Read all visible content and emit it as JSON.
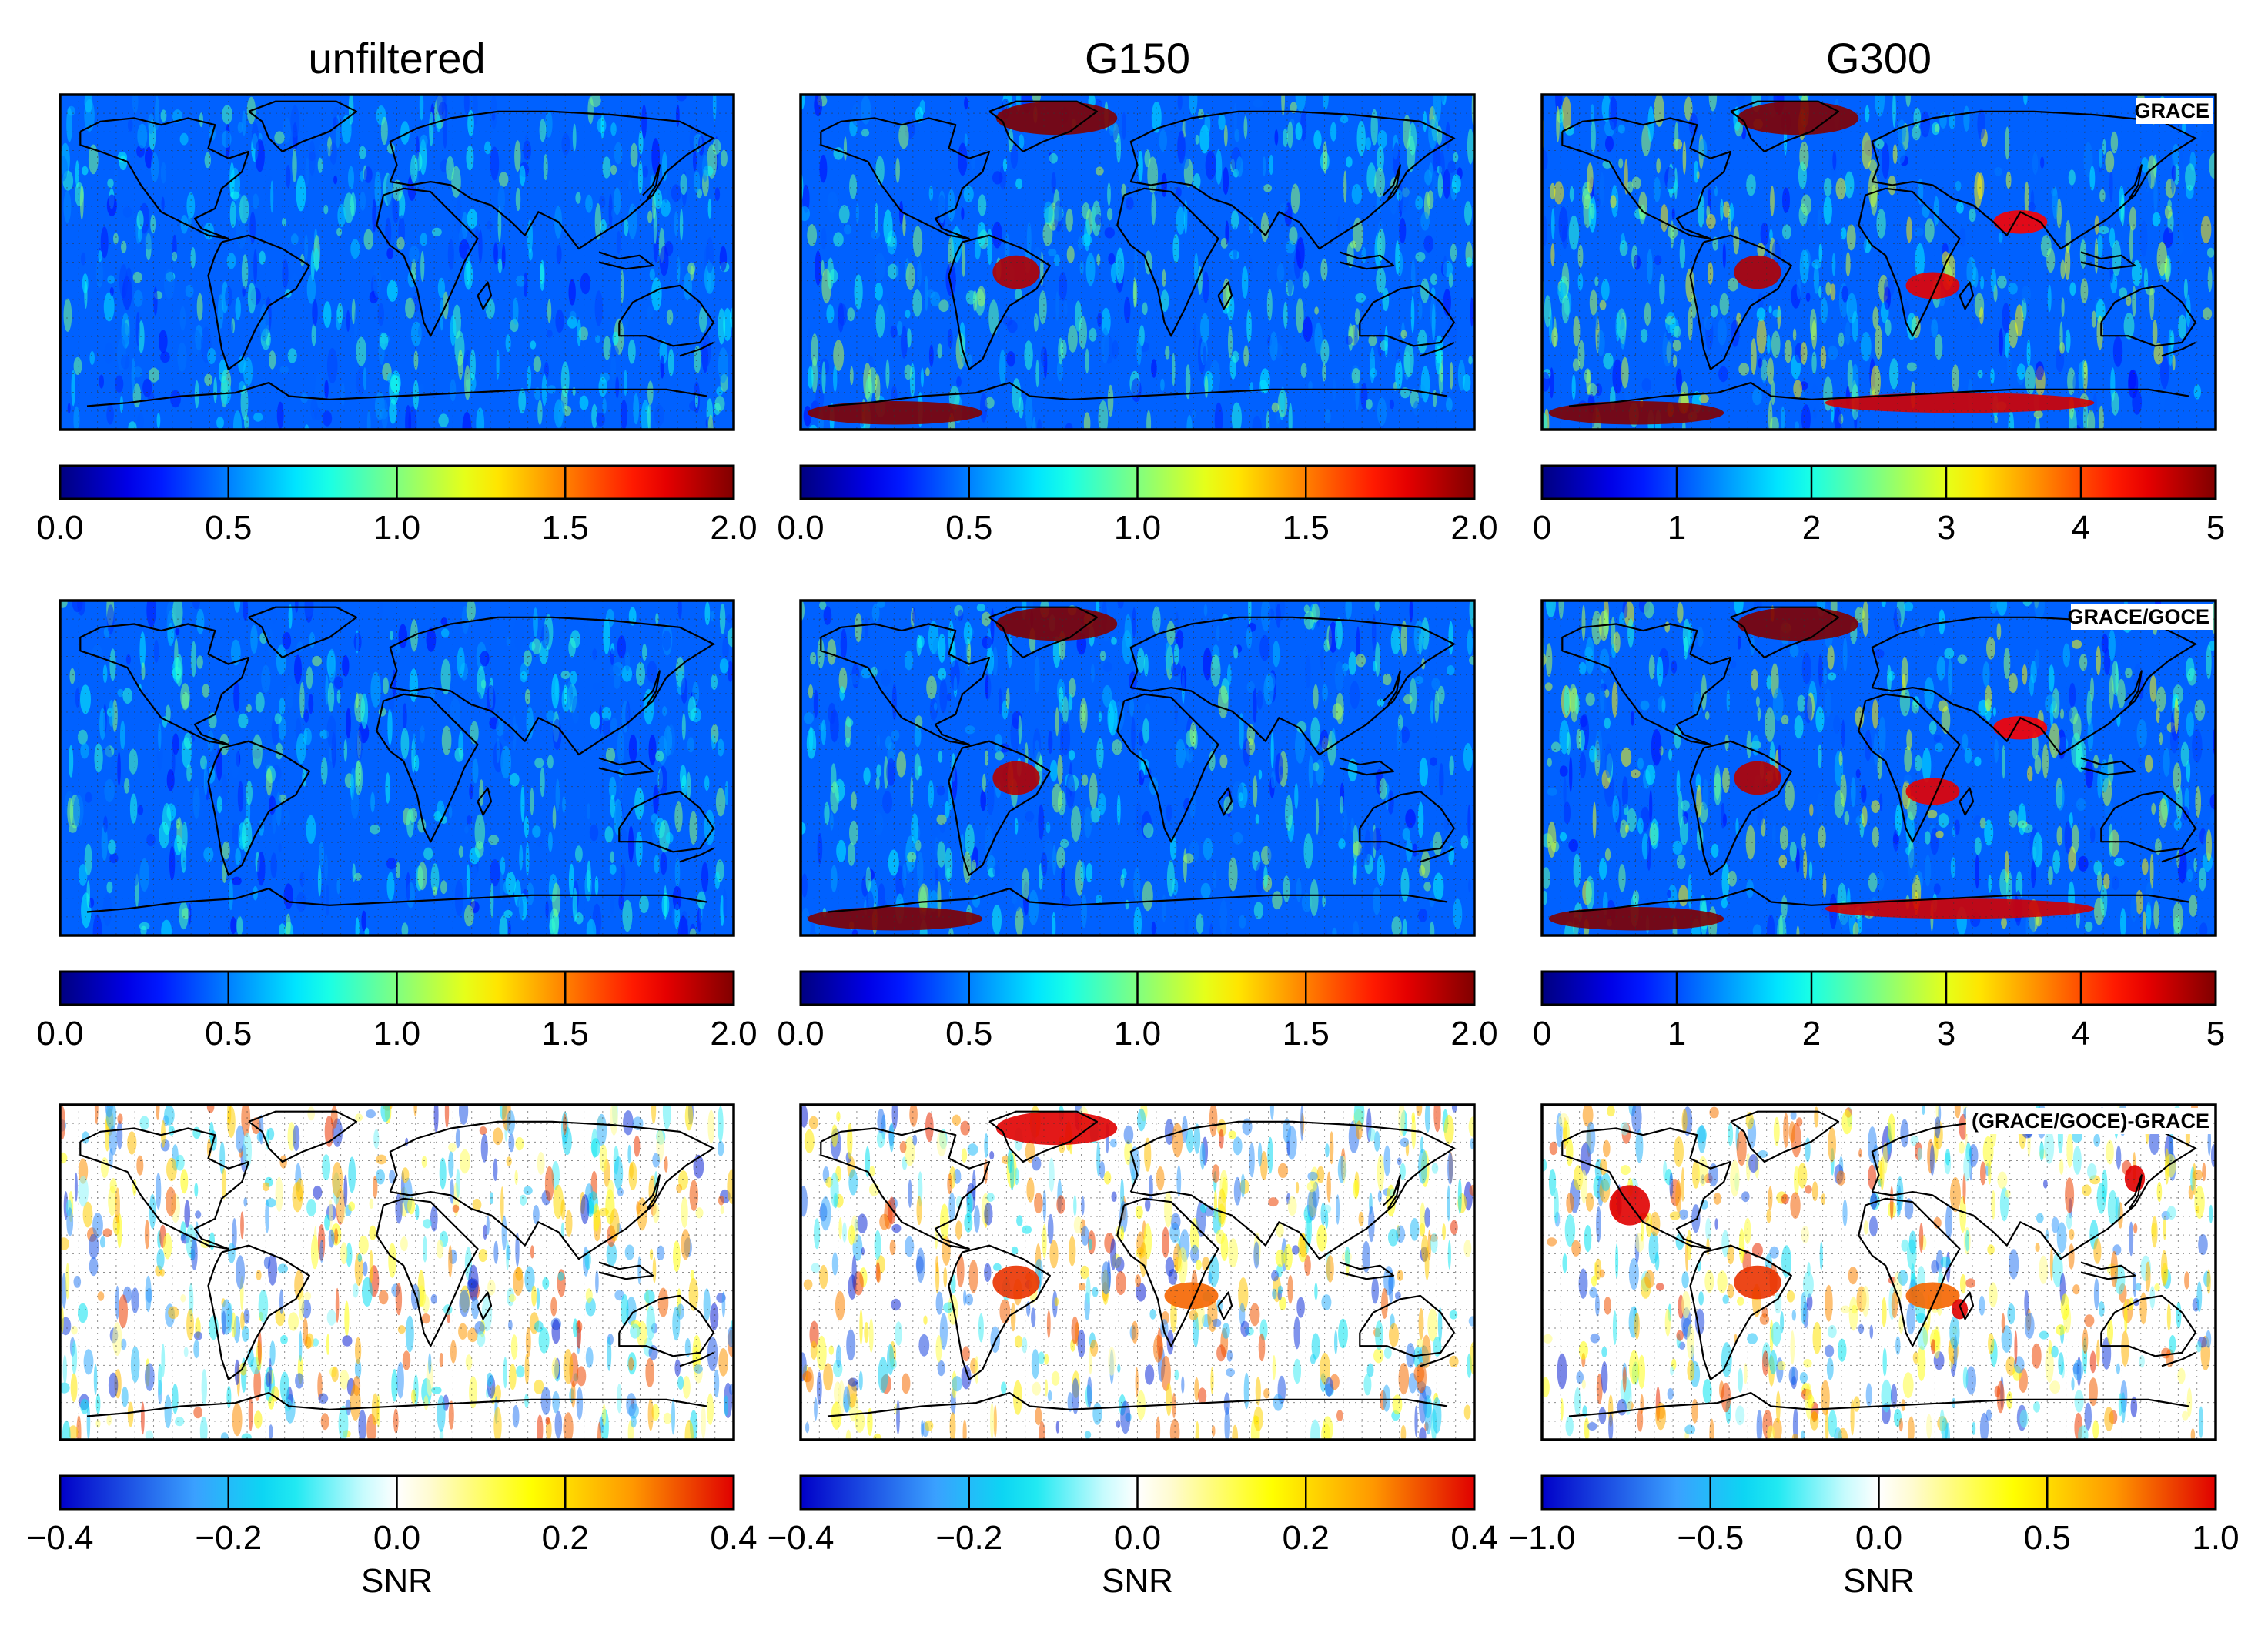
{
  "figure": {
    "columns": [
      "unfiltered",
      "G150",
      "G300"
    ]
  },
  "chart_data": [
    {
      "type": "heatmap",
      "title": "unfiltered",
      "row": "GRACE",
      "colorbar_ticks": [
        "0.0",
        "0.5",
        "1.0",
        "1.5",
        "2.0"
      ],
      "colorbar_range": [
        0.0,
        2.0
      ],
      "colormap": "jet",
      "background_level": 0.45,
      "hotspots": []
    },
    {
      "type": "heatmap",
      "title": "G150",
      "row": "GRACE",
      "colorbar_ticks": [
        "0.0",
        "0.5",
        "1.0",
        "1.5",
        "2.0"
      ],
      "colorbar_range": [
        0.0,
        2.0
      ],
      "colormap": "jet",
      "background_level": 0.55,
      "hotspots": [
        "Greenland",
        "West Antarctica",
        "Amazon"
      ]
    },
    {
      "type": "heatmap",
      "title": "G300",
      "row": "GRACE",
      "annotation": "GRACE",
      "colorbar_ticks": [
        "0",
        "1",
        "2",
        "3",
        "4",
        "5"
      ],
      "colorbar_range": [
        0,
        5
      ],
      "colormap": "jet",
      "background_level": 0.8,
      "hotspots": [
        "Greenland",
        "West Antarctica",
        "East Antarctica",
        "Amazon",
        "Africa",
        "India"
      ]
    },
    {
      "type": "heatmap",
      "title": "unfiltered",
      "row": "GRACE/GOCE",
      "colorbar_ticks": [
        "0.0",
        "0.5",
        "1.0",
        "1.5",
        "2.0"
      ],
      "colorbar_range": [
        0.0,
        2.0
      ],
      "colormap": "jet",
      "background_level": 0.45,
      "hotspots": []
    },
    {
      "type": "heatmap",
      "title": "G150",
      "row": "GRACE/GOCE",
      "colorbar_ticks": [
        "0.0",
        "0.5",
        "1.0",
        "1.5",
        "2.0"
      ],
      "colorbar_range": [
        0.0,
        2.0
      ],
      "colormap": "jet",
      "background_level": 0.55,
      "hotspots": [
        "Greenland",
        "West Antarctica",
        "Amazon"
      ]
    },
    {
      "type": "heatmap",
      "title": "G300",
      "row": "GRACE/GOCE",
      "annotation": "GRACE/GOCE",
      "colorbar_ticks": [
        "0",
        "1",
        "2",
        "3",
        "4",
        "5"
      ],
      "colorbar_range": [
        0,
        5
      ],
      "colormap": "jet",
      "background_level": 0.8,
      "hotspots": [
        "Greenland",
        "West Antarctica",
        "East Antarctica",
        "Amazon",
        "Africa",
        "India"
      ]
    },
    {
      "type": "heatmap",
      "title": "unfiltered",
      "row": "(GRACE/GOCE)-GRACE",
      "colorbar_ticks": [
        "−0.4",
        "−0.2",
        "0.0",
        "0.2",
        "0.4"
      ],
      "colorbar_range": [
        -0.4,
        0.4
      ],
      "colorbar_label": "SNR",
      "colormap": "diverging",
      "background_level": 0.0,
      "hotspots": []
    },
    {
      "type": "heatmap",
      "title": "G150",
      "row": "(GRACE/GOCE)-GRACE",
      "colorbar_ticks": [
        "−0.4",
        "−0.2",
        "0.0",
        "0.2",
        "0.4"
      ],
      "colorbar_range": [
        -0.4,
        0.4
      ],
      "colorbar_label": "SNR",
      "colormap": "diverging",
      "background_level": 0.0,
      "hotspots": [
        "Africa",
        "Amazon",
        "Greenland"
      ]
    },
    {
      "type": "heatmap",
      "title": "G300",
      "row": "(GRACE/GOCE)-GRACE",
      "annotation": "(GRACE/GOCE)-GRACE",
      "colorbar_ticks": [
        "−1.0",
        "−0.5",
        "0.0",
        "0.5",
        "1.0"
      ],
      "colorbar_range": [
        -1.0,
        1.0
      ],
      "colorbar_label": "SNR",
      "colormap": "diverging",
      "background_level": 0.0,
      "hotspots": [
        "North America",
        "Amazon",
        "Africa",
        "Madagascar",
        "Japan"
      ]
    }
  ]
}
